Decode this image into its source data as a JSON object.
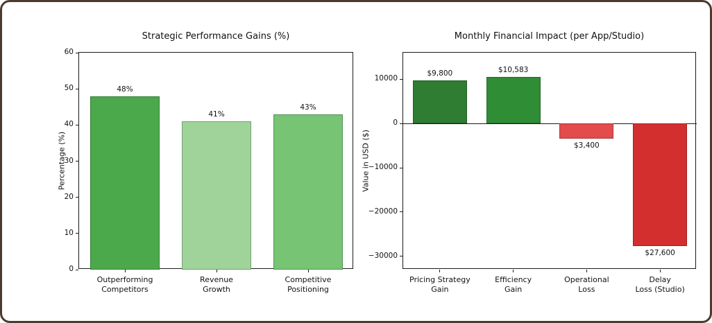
{
  "frame": {
    "background": "#ffffff",
    "border_color": "#4d3a2e"
  },
  "chart_data": [
    {
      "type": "bar",
      "title": "Strategic Performance Gains (%)",
      "xlabel": "",
      "ylabel": "Percentage (%)",
      "categories": [
        "Outperforming\nCompetitors",
        "Revenue\nGrowth",
        "Competitive\nPositioning"
      ],
      "values": [
        48,
        41,
        43
      ],
      "bar_labels": [
        "48%",
        "41%",
        "43%"
      ],
      "bar_colors": [
        "#4ba94b",
        "#9fd39a",
        "#77c474"
      ],
      "ylim": [
        0,
        60
      ],
      "yticks": [
        0,
        10,
        20,
        30,
        40,
        50,
        60
      ],
      "ytick_labels": [
        "0",
        "10",
        "20",
        "30",
        "40",
        "50",
        "60"
      ],
      "grid": false,
      "legend_position": "none"
    },
    {
      "type": "bar",
      "title": "Monthly Financial Impact (per App/Studio)",
      "xlabel": "",
      "ylabel": "Value in USD ($)",
      "categories": [
        "Pricing Strategy\nGain",
        "Efficiency\nGain",
        "Operational\nLoss",
        "Delay\nLoss (Studio)"
      ],
      "values": [
        9800,
        10583,
        -3400,
        -27600
      ],
      "bar_labels": [
        "$9,800",
        "$10,583",
        "$3,400",
        "$27,600"
      ],
      "bar_colors": [
        "#2e7d32",
        "#2f8d35",
        "#e24c4c",
        "#d32f2f"
      ],
      "ylim": [
        -33000,
        16000
      ],
      "yticks": [
        10000,
        0,
        -10000,
        -20000,
        -30000
      ],
      "ytick_labels": [
        "10000",
        "0",
        "−10000",
        "−20000",
        "−30000"
      ],
      "grid": false,
      "legend_position": "none"
    }
  ]
}
